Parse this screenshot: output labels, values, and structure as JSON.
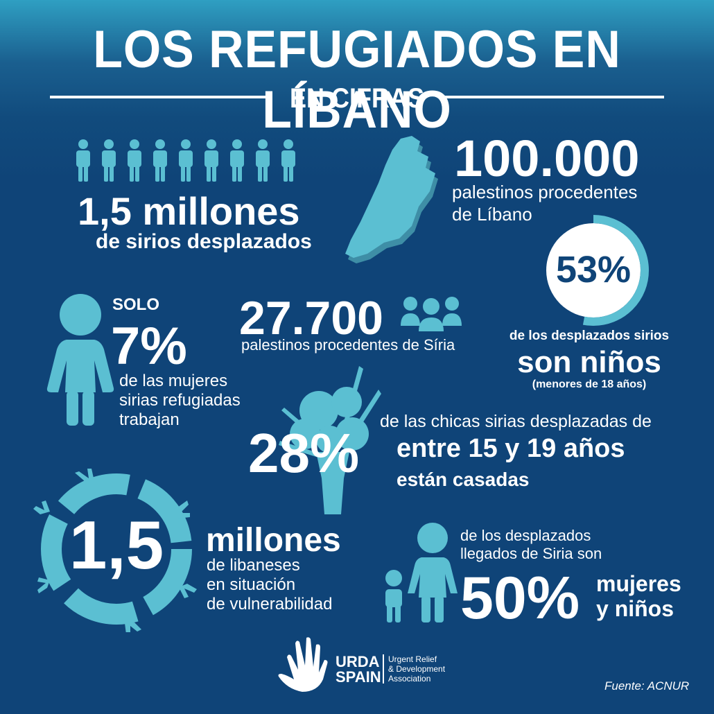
{
  "header": {
    "title": "LOS REFUGIADOS EN LÍBANO",
    "subtitle": "EN CIFRAS"
  },
  "colors": {
    "background": "#0f4478",
    "accent": "#5bbfd2",
    "text": "#ffffff"
  },
  "stat_sirios": {
    "value": "1,5 millones",
    "label": "de sirios desplazados",
    "icon": "people-row-icon"
  },
  "stat_palestinos_libano": {
    "value": "100.000",
    "line1": "palestinos procedentes",
    "line2": "de Líbano",
    "icon": "lebanon-map-icon"
  },
  "stat_ninos": {
    "value": "53%",
    "label1": "de los desplazados sirios",
    "label2": "son niños",
    "label3": "(menores de 18 años)",
    "ring_fraction": 0.53
  },
  "stat_mujeres": {
    "prefix": "SOLO",
    "value": "7%",
    "line1": "de las mujeres",
    "line2": "sirias refugiadas",
    "line3": "trabajan",
    "icon": "woman-icon"
  },
  "stat_palestinos_siria": {
    "value": "27.700",
    "label": "palestinos procedentes de Síria",
    "icon": "group-icon"
  },
  "stat_casadas": {
    "value": "28%",
    "line1": "de las chicas sirias desplazadas de",
    "line2": "entre 15 y 19 años",
    "line3": "están casadas",
    "icon": "bouquet-icon"
  },
  "stat_libaneses": {
    "value": "1,5",
    "line1": "millones",
    "line2": "de libaneses",
    "line3": "en situación",
    "line4": "de vulnerabilidad",
    "icon": "hands-circle-icon"
  },
  "stat_mujeres_ninos": {
    "line1": "de los desplazados",
    "line2": "llegados de Siria son",
    "value": "50%",
    "label1": "mujeres",
    "label2": "y niños",
    "icon": "woman-child-icon"
  },
  "footer": {
    "logo_line1": "URDA",
    "logo_line2": "SPAIN",
    "org1": "Urgent Relief",
    "org2": "& Development",
    "org3": "Association",
    "source": "Fuente: ACNUR"
  }
}
